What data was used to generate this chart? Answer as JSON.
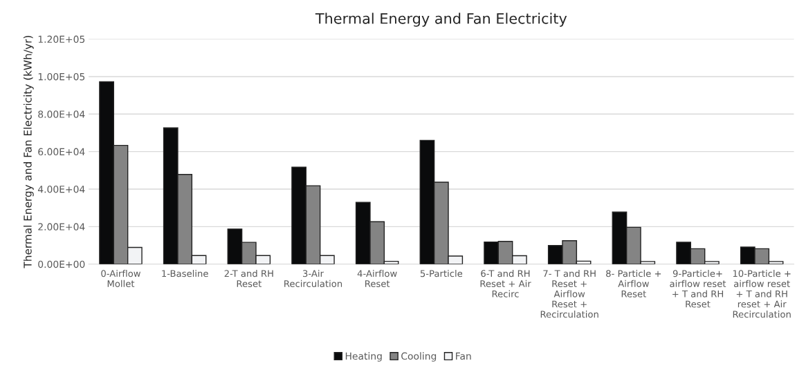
{
  "chart_data": {
    "type": "bar",
    "title": "Thermal Energy and Fan Electricity",
    "ylabel": "Thermal Energy and Fan Electricity (kWh/yr)",
    "categories": [
      "0-Airflow Mollet",
      "1-Baseline",
      "2-T and RH Reset",
      "3-Air Recirculation",
      "4-Airflow Reset",
      "5-Particle",
      "6-T and RH Reset + Air Recirc",
      "7- T and RH Reset + Airflow Reset + Recirculation",
      "8- Particle + Airflow Reset",
      "9-Particle+ airflow reset + T and RH Reset",
      "10-Particle + airflow reset + T and RH reset + Air Recirculation"
    ],
    "series": [
      {
        "name": "Heating",
        "color": "#0a0b0c",
        "values": [
          97200,
          72700,
          18700,
          51700,
          32900,
          66000,
          11800,
          9900,
          27800,
          11700,
          9100
        ]
      },
      {
        "name": "Cooling",
        "color": "#848484",
        "values": [
          63300,
          47800,
          11600,
          41800,
          22600,
          43700,
          12100,
          12500,
          19600,
          8200,
          8200
        ]
      },
      {
        "name": "Fan",
        "color": "#f2f3f5",
        "values": [
          8900,
          4600,
          4600,
          4600,
          1500,
          4300,
          4500,
          1600,
          1400,
          1400,
          1400
        ]
      }
    ],
    "ylim": [
      0,
      120000
    ],
    "yticks": [
      {
        "value": 0,
        "label": "0.00E+00"
      },
      {
        "value": 20000,
        "label": "2.00E+04"
      },
      {
        "value": 40000,
        "label": "4.00E+04"
      },
      {
        "value": 60000,
        "label": "6.00E+04"
      },
      {
        "value": 80000,
        "label": "8.00E+04"
      },
      {
        "value": 100000,
        "label": "1.00E+05"
      },
      {
        "value": 120000,
        "label": "1.20E+05"
      }
    ],
    "grid": "y",
    "legend": "bottom"
  }
}
